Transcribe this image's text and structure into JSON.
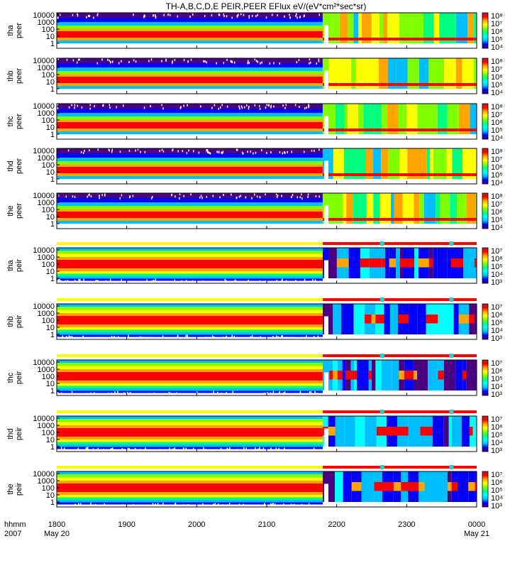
{
  "chart_data": {
    "type": "heatmap",
    "title": "TH-A,B,C,D,E PEIR,PEER EFlux eV/(eV*cm²*sec*sr)",
    "x_axis": {
      "format_label": "hhmm",
      "year_label": "2007",
      "ticks": [
        "1800",
        "1900",
        "2000",
        "2100",
        "2200",
        "2300",
        "0000"
      ],
      "date_labels": {
        "1800": "May 20",
        "0000": "May 21"
      }
    },
    "panels": [
      {
        "probe": "tha",
        "species": "peer",
        "yticks": [
          "10000",
          "1000",
          "100",
          "10",
          "1"
        ],
        "cbar_ticks": [
          "10⁸",
          "10⁷",
          "10⁶",
          "10⁵",
          "10⁴"
        ],
        "mode_bar": false
      },
      {
        "probe": "thb",
        "species": "peer",
        "yticks": [
          "10000",
          "1000",
          "100",
          "10",
          "1"
        ],
        "cbar_ticks": [
          "10⁸",
          "10⁷",
          "10⁶",
          "10⁵",
          "10⁴"
        ],
        "mode_bar": false
      },
      {
        "probe": "thc",
        "species": "peer",
        "yticks": [
          "10000",
          "1000",
          "100",
          "10",
          "1"
        ],
        "cbar_ticks": [
          "10⁸",
          "10⁷",
          "10⁶",
          "10⁵",
          "10⁴"
        ],
        "mode_bar": false
      },
      {
        "probe": "thd",
        "species": "peer",
        "yticks": [
          "10000",
          "1000",
          "100",
          "10",
          "1"
        ],
        "cbar_ticks": [
          "10⁸",
          "10⁷",
          "10⁶",
          "10⁵",
          "10⁴"
        ],
        "mode_bar": false
      },
      {
        "probe": "the",
        "species": "peer",
        "yticks": [
          "10000",
          "1000",
          "100",
          "10",
          "1"
        ],
        "cbar_ticks": [
          "10⁸",
          "10⁷",
          "10⁶",
          "10⁵",
          "10⁴"
        ],
        "mode_bar": false
      },
      {
        "probe": "tha",
        "species": "peir",
        "yticks": [
          "10000",
          "1000",
          "100",
          "10",
          "1"
        ],
        "cbar_ticks": [
          "10⁷",
          "10⁶",
          "10⁵",
          "10⁴",
          "10³"
        ],
        "mode_bar": true
      },
      {
        "probe": "thb",
        "species": "peir",
        "yticks": [
          "10000",
          "1000",
          "100",
          "10",
          "1"
        ],
        "cbar_ticks": [
          "10⁷",
          "10⁶",
          "10⁵",
          "10⁴",
          "10³"
        ],
        "mode_bar": true
      },
      {
        "probe": "thc",
        "species": "peir",
        "yticks": [
          "10000",
          "1000",
          "100",
          "10",
          "1"
        ],
        "cbar_ticks": [
          "10⁷",
          "10⁶",
          "10⁵",
          "10⁴",
          "10³"
        ],
        "mode_bar": true
      },
      {
        "probe": "thd",
        "species": "peir",
        "yticks": [
          "10000",
          "1000",
          "100",
          "10",
          "1"
        ],
        "cbar_ticks": [
          "10⁷",
          "10⁶",
          "10⁵",
          "10⁴",
          "10³"
        ],
        "mode_bar": true
      },
      {
        "probe": "the",
        "species": "peir",
        "yticks": [
          "10000",
          "1000",
          "100",
          "10",
          "1"
        ],
        "cbar_ticks": [
          "10⁷",
          "10⁶",
          "10⁵",
          "10⁴",
          "10³"
        ],
        "mode_bar": true
      }
    ],
    "mode_bar_colors": {
      "before": "#ffff00",
      "after": "#ff0000",
      "marker": "#33cccc"
    },
    "mode_change_time": "2148",
    "colormap": [
      "#4b0082",
      "#0000ff",
      "#00bfff",
      "#00ffff",
      "#00ff7f",
      "#7fff00",
      "#ffff00",
      "#ffa500",
      "#ff0000",
      "#b22222"
    ]
  }
}
